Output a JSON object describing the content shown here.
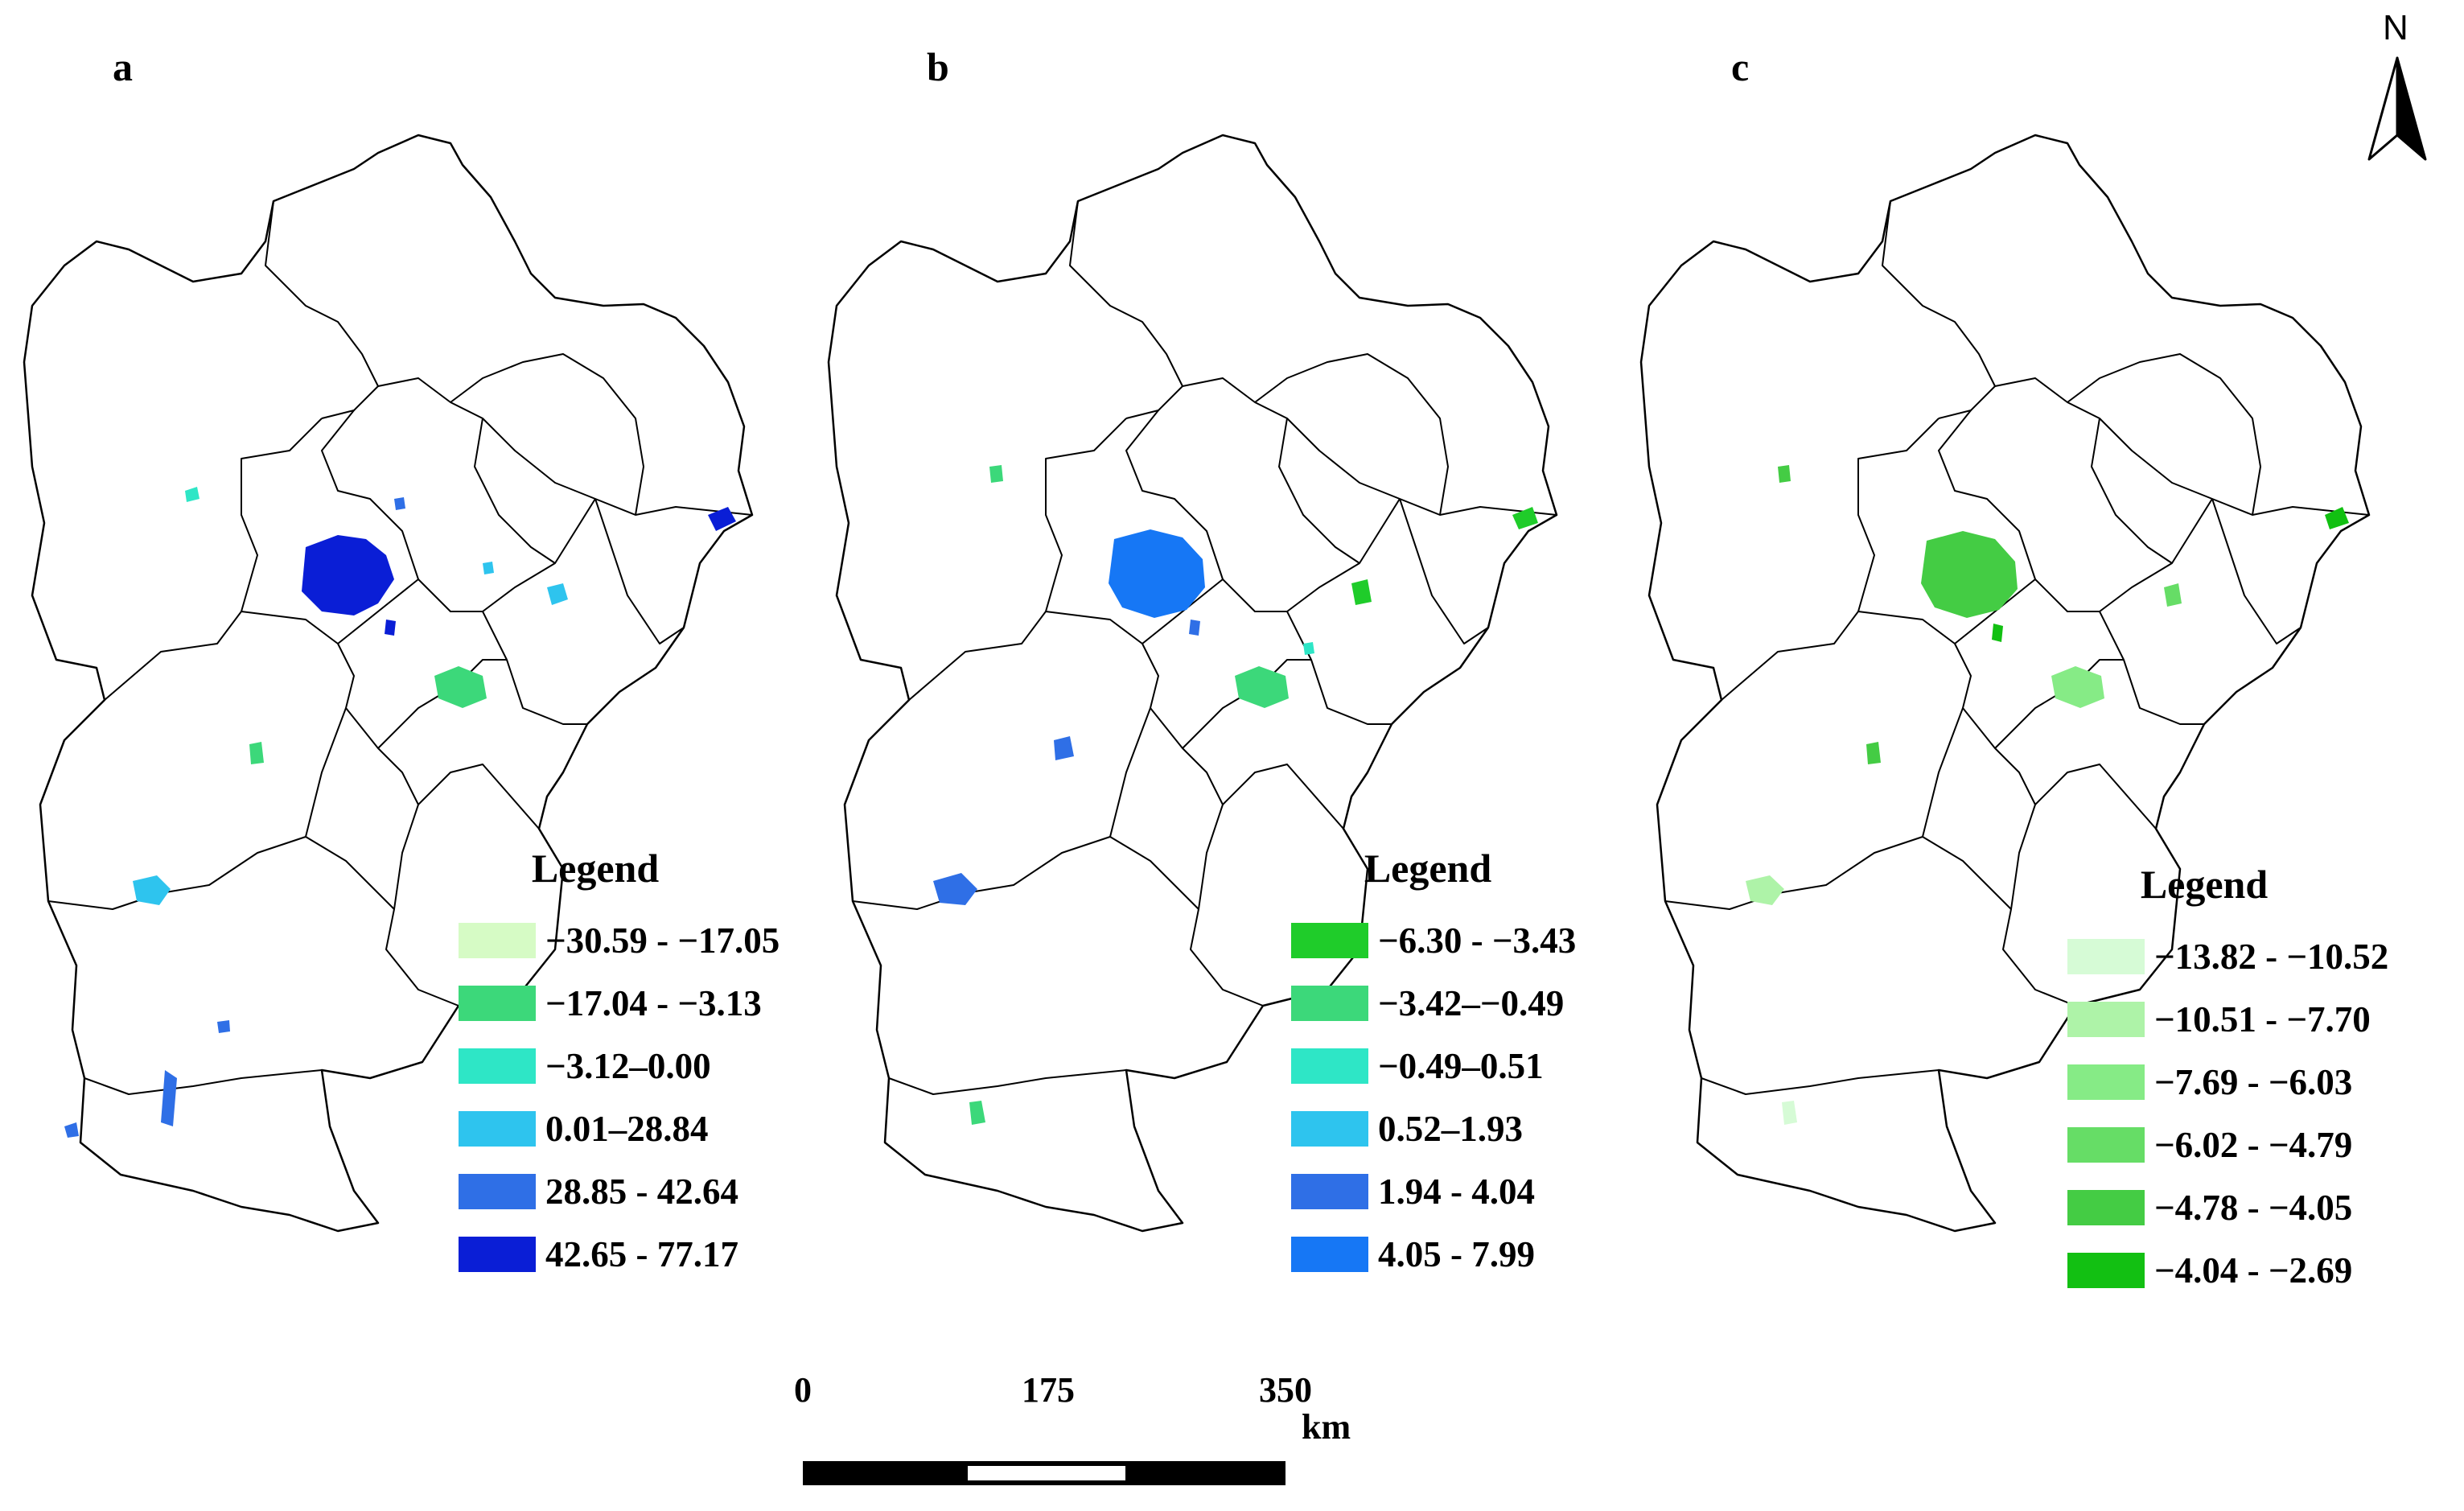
{
  "panels": [
    {
      "label": "a",
      "legend_title": "Legend",
      "classes": [
        {
          "label": "−30.59 - −17.05",
          "color": "#d6fbc5"
        },
        {
          "label": "−17.04 - −3.13",
          "color": "#3cd87a"
        },
        {
          "label": "−3.12–0.00",
          "color": "#2ee6c6"
        },
        {
          "label": "0.01–28.84",
          "color": "#2ec4ee"
        },
        {
          "label": "28.85 - 42.64",
          "color": "#2f6fe6"
        },
        {
          "label": "42.65 - 77.17",
          "color": "#0a1ed6"
        }
      ]
    },
    {
      "label": "b",
      "legend_title": "Legend",
      "classes": [
        {
          "label": "−6.30 - −3.43",
          "color": "#1fcc2a"
        },
        {
          "label": "−3.42–−0.49",
          "color": "#3cd87a"
        },
        {
          "label": "−0.49–0.51",
          "color": "#2ee6c6"
        },
        {
          "label": "0.52–1.93",
          "color": "#2ec4ee"
        },
        {
          "label": "1.94 - 4.04",
          "color": "#2f6fe6"
        },
        {
          "label": "4.05 - 7.99",
          "color": "#1677f5"
        }
      ]
    },
    {
      "label": "c",
      "legend_title": "Legend",
      "classes": [
        {
          "label": "−13.82 - −10.52",
          "color": "#d6fbd6"
        },
        {
          "label": "−10.51 - −7.70",
          "color": "#aef3a8"
        },
        {
          "label": "−7.69 - −6.03",
          "color": "#86eb86"
        },
        {
          "label": "−6.02 - −4.79",
          "color": "#66dd66"
        },
        {
          "label": "−4.78 - −4.05",
          "color": "#44cc44"
        },
        {
          "label": "−4.04 - −2.69",
          "color": "#12c012"
        }
      ]
    }
  ],
  "north_arrow": {
    "letter": "N"
  },
  "scale_bar": {
    "ticks": [
      "0",
      "175",
      "350"
    ],
    "unit": "km"
  }
}
